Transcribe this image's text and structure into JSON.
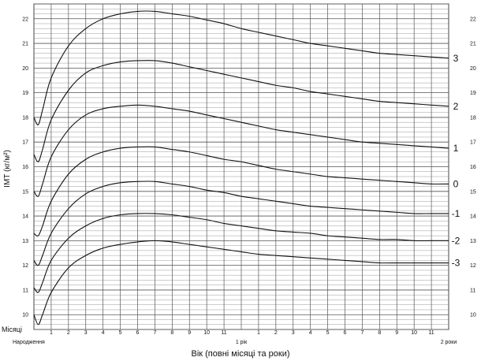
{
  "chart_data": {
    "type": "line",
    "ylabel": "ІМТ (кг/м²)",
    "xlabel": "Вік (повні місяці та роки)",
    "x_unit_label": "Місяці",
    "x_ticks": [
      "Народження",
      "1",
      "2",
      "3",
      "4",
      "5",
      "6",
      "7",
      "8",
      "9",
      "10",
      "11",
      "1 рік",
      "1",
      "2",
      "3",
      "4",
      "5",
      "6",
      "7",
      "8",
      "9",
      "10",
      "11",
      "2 роки"
    ],
    "y_ticks": [
      10,
      11,
      12,
      13,
      14,
      15,
      16,
      17,
      18,
      19,
      20,
      21,
      22
    ],
    "ylim": [
      9.4,
      22.6
    ],
    "xlim": [
      0,
      24
    ],
    "grid": true,
    "x": [
      0,
      0.25,
      0.5,
      1,
      2,
      3,
      4,
      5,
      6,
      7,
      8,
      9,
      10,
      11,
      12,
      13,
      14,
      15,
      16,
      17,
      18,
      19,
      20,
      21,
      22,
      23,
      24
    ],
    "series": [
      {
        "name": "3",
        "values": [
          18.0,
          17.7,
          18.3,
          19.6,
          20.9,
          21.6,
          22.0,
          22.2,
          22.3,
          22.3,
          22.2,
          22.1,
          21.95,
          21.8,
          21.6,
          21.45,
          21.3,
          21.15,
          21.0,
          20.9,
          20.8,
          20.7,
          20.6,
          20.55,
          20.5,
          20.45,
          20.4
        ]
      },
      {
        "name": "2",
        "values": [
          16.5,
          16.2,
          16.7,
          17.9,
          19.1,
          19.8,
          20.1,
          20.25,
          20.3,
          20.3,
          20.2,
          20.05,
          19.9,
          19.75,
          19.6,
          19.45,
          19.3,
          19.2,
          19.05,
          18.95,
          18.85,
          18.75,
          18.65,
          18.6,
          18.55,
          18.5,
          18.45
        ]
      },
      {
        "name": "1",
        "values": [
          15.0,
          14.8,
          15.3,
          16.4,
          17.5,
          18.1,
          18.35,
          18.45,
          18.5,
          18.45,
          18.35,
          18.25,
          18.1,
          17.95,
          17.8,
          17.65,
          17.5,
          17.4,
          17.3,
          17.2,
          17.1,
          17.0,
          16.95,
          16.9,
          16.85,
          16.8,
          16.75
        ]
      },
      {
        "name": "0",
        "values": [
          13.3,
          13.2,
          13.6,
          14.6,
          15.7,
          16.3,
          16.6,
          16.75,
          16.8,
          16.8,
          16.7,
          16.6,
          16.45,
          16.3,
          16.2,
          16.05,
          15.9,
          15.8,
          15.7,
          15.6,
          15.55,
          15.5,
          15.45,
          15.4,
          15.35,
          15.3,
          15.3
        ]
      },
      {
        "name": "-1",
        "values": [
          12.2,
          12.0,
          12.4,
          13.3,
          14.3,
          14.9,
          15.2,
          15.35,
          15.4,
          15.4,
          15.3,
          15.2,
          15.05,
          14.95,
          14.8,
          14.7,
          14.6,
          14.5,
          14.4,
          14.35,
          14.3,
          14.25,
          14.2,
          14.15,
          14.1,
          14.1,
          14.1
        ]
      },
      {
        "name": "-2",
        "values": [
          11.1,
          10.9,
          11.3,
          12.2,
          13.1,
          13.6,
          13.9,
          14.05,
          14.1,
          14.1,
          14.05,
          13.95,
          13.85,
          13.7,
          13.6,
          13.5,
          13.4,
          13.35,
          13.3,
          13.2,
          13.15,
          13.1,
          13.05,
          13.05,
          13.0,
          13.0,
          13.0
        ]
      },
      {
        "name": "-3",
        "values": [
          10.0,
          9.6,
          10.0,
          10.9,
          11.9,
          12.4,
          12.7,
          12.85,
          12.95,
          13.0,
          12.95,
          12.85,
          12.75,
          12.65,
          12.55,
          12.45,
          12.4,
          12.35,
          12.3,
          12.25,
          12.2,
          12.15,
          12.1,
          12.1,
          12.1,
          12.1,
          12.1
        ]
      }
    ]
  }
}
